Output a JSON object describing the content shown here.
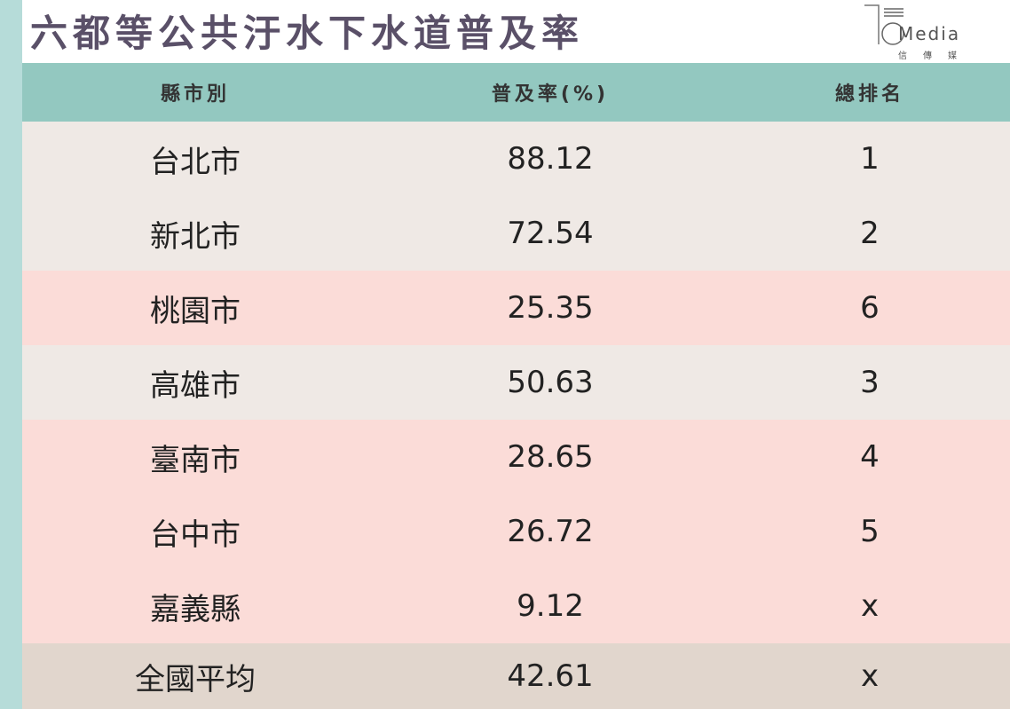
{
  "title": "六都等公共汙水下水道普及率",
  "logo": {
    "word": "Media",
    "sub": "信傳媒"
  },
  "colors": {
    "header": "#93c8c0",
    "strip": "#b6dcd9",
    "beige": "#efe9e5",
    "pink": "#fbdcd8",
    "average": "#e1d6cd",
    "title": "#5a5068"
  },
  "headers": [
    "縣市別",
    "普及率(%)",
    "總排名"
  ],
  "rows": [
    {
      "city": "台北市",
      "rate": "88.12",
      "rank": "1",
      "style": "beige"
    },
    {
      "city": "新北市",
      "rate": "72.54",
      "rank": "2",
      "style": "beige"
    },
    {
      "city": "桃園市",
      "rate": "25.35",
      "rank": "6",
      "style": "pink"
    },
    {
      "city": "高雄市",
      "rate": "50.63",
      "rank": "3",
      "style": "beige"
    },
    {
      "city": "臺南市",
      "rate": "28.65",
      "rank": "4",
      "style": "pink"
    },
    {
      "city": "台中市",
      "rate": "26.72",
      "rank": "5",
      "style": "pink"
    },
    {
      "city": "嘉義縣",
      "rate": "9.12",
      "rank": "x",
      "style": "pink"
    },
    {
      "city": "全國平均",
      "rate": "42.61",
      "rank": "x",
      "style": "avg"
    }
  ]
}
